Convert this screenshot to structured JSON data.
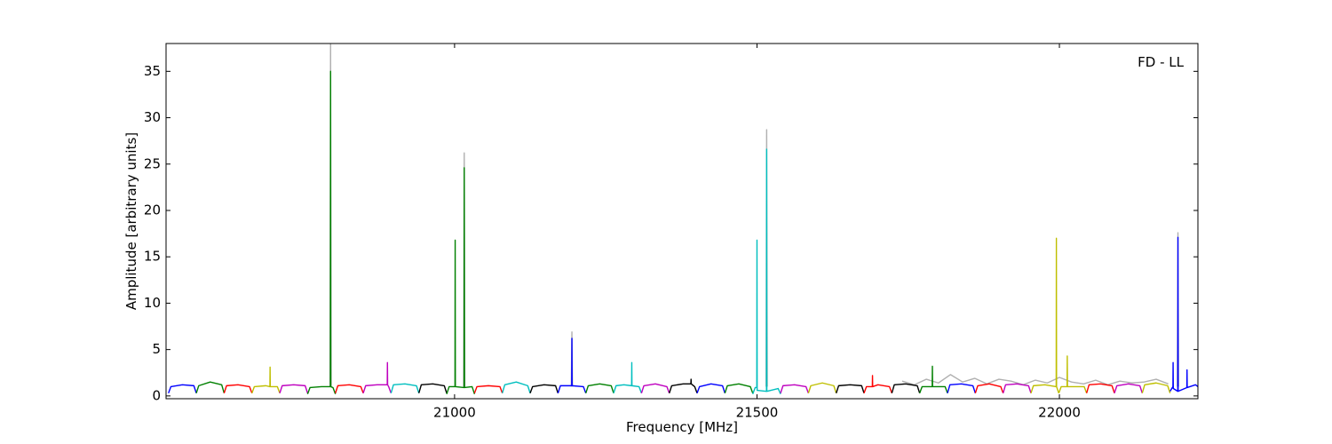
{
  "chart_data": {
    "type": "line",
    "xlabel": "Frequency [MHz]",
    "ylabel": "Amplitude [arbitrary units]",
    "annotation": "FD - LL",
    "xlim": [
      20523,
      22229
    ],
    "ylim": [
      -0.3,
      38
    ],
    "xticks": [
      21000,
      21500,
      22000
    ],
    "yticks": [
      0,
      5,
      10,
      15,
      20,
      25,
      30,
      35
    ],
    "series": [
      {
        "color": "#b0b0b0",
        "x": [
          20794,
          20795,
          20796,
          20797,
          21015,
          21016,
          21017,
          21018,
          21193,
          21194,
          21195,
          21196,
          21515,
          21516,
          21517,
          21518,
          21740,
          21760,
          21780,
          21800,
          21820,
          21840,
          21860,
          21880,
          21900,
          21920,
          21940,
          21960,
          21980,
          22000,
          22020,
          22040,
          22060,
          22080,
          22100,
          22120,
          22140,
          22160,
          22180,
          22181,
          22195,
          22196,
          22197
        ],
        "values": [
          1,
          38,
          1,
          null,
          1,
          26.2,
          1,
          null,
          1,
          6.9,
          1,
          null,
          1,
          28.7,
          1,
          null,
          1.6,
          1.2,
          1.8,
          1.4,
          2.3,
          1.5,
          1.9,
          1.3,
          1.8,
          1.6,
          1.2,
          1.7,
          1.4,
          2.0,
          1.5,
          1.3,
          1.7,
          1.2,
          1.6,
          1.4,
          1.5,
          1.8,
          1.3,
          null,
          1,
          17.6,
          1
        ]
      },
      {
        "color": "#0000ff",
        "x": [
          20527,
          20531,
          20550,
          20569,
          20573
        ],
        "values": [
          0.3,
          1.0,
          1.2,
          1.1,
          0.3
        ]
      },
      {
        "color": "#008000",
        "x": [
          20573,
          20577,
          20596,
          20615,
          20619
        ],
        "values": [
          0.3,
          1.1,
          1.5,
          1.2,
          0.3
        ]
      },
      {
        "color": "#ff0000",
        "x": [
          20619,
          20623,
          20642,
          20661,
          20665
        ],
        "values": [
          0.3,
          1.1,
          1.2,
          1.0,
          0.3
        ]
      },
      {
        "color": "#bfbf00",
        "x": [
          20665,
          20669,
          20688,
          20694.7,
          20695,
          20695.3,
          20707,
          20711
        ],
        "values": [
          0.3,
          1.0,
          1.1,
          1.0,
          3.1,
          1.0,
          1.0,
          0.3
        ]
      },
      {
        "color": "#bf00bf",
        "x": [
          20711,
          20715,
          20734,
          20753,
          20757
        ],
        "values": [
          0.3,
          1.1,
          1.2,
          1.1,
          0.3
        ]
      },
      {
        "color": "#008000",
        "x": [
          20757,
          20761,
          20780,
          20794.7,
          20795,
          20795.3,
          20799,
          20803
        ],
        "values": [
          0.2,
          0.9,
          1.0,
          1.0,
          35,
          1.0,
          0.9,
          0.2
        ]
      },
      {
        "color": "#ff0000",
        "x": [
          20803,
          20807,
          20826,
          20845,
          20849
        ],
        "values": [
          0.3,
          1.1,
          1.2,
          1.0,
          0.3
        ]
      },
      {
        "color": "#bf00bf",
        "x": [
          20849,
          20853,
          20872,
          20888.7,
          20889,
          20889.3,
          20891,
          20895
        ],
        "values": [
          0.3,
          1.1,
          1.2,
          1.2,
          3.6,
          1.2,
          1.0,
          0.3
        ]
      },
      {
        "color": "#00bfbf",
        "x": [
          20895,
          20899,
          20918,
          20937,
          20941
        ],
        "values": [
          0.3,
          1.2,
          1.3,
          1.1,
          0.3
        ]
      },
      {
        "color": "#000000",
        "x": [
          20941,
          20945,
          20964,
          20983,
          20987
        ],
        "values": [
          0.3,
          1.2,
          1.3,
          1.1,
          0.3
        ]
      },
      {
        "color": "#008000",
        "x": [
          20987,
          20991,
          21000.7,
          21001,
          21001.3,
          21015.7,
          21016,
          21016.3,
          21029,
          21033
        ],
        "values": [
          0.2,
          1.0,
          1.0,
          16.8,
          1.0,
          0.9,
          24.6,
          0.9,
          1.0,
          0.2
        ]
      },
      {
        "color": "#ff0000",
        "x": [
          21033,
          21037,
          21056,
          21075,
          21079
        ],
        "values": [
          0.3,
          1.0,
          1.1,
          1.0,
          0.3
        ]
      },
      {
        "color": "#00bfbf",
        "x": [
          21079,
          21083,
          21102,
          21121,
          21125
        ],
        "values": [
          0.3,
          1.2,
          1.5,
          1.1,
          0.3
        ]
      },
      {
        "color": "#000000",
        "x": [
          21125,
          21129,
          21148,
          21167,
          21171
        ],
        "values": [
          0.3,
          1.0,
          1.2,
          1.1,
          0.3
        ]
      },
      {
        "color": "#0000ff",
        "x": [
          21171,
          21175,
          21193.7,
          21194,
          21194.3,
          21213,
          21217
        ],
        "values": [
          0.3,
          1.1,
          1.1,
          6.2,
          1.1,
          1.0,
          0.3
        ]
      },
      {
        "color": "#008000",
        "x": [
          21217,
          21221,
          21240,
          21259,
          21263
        ],
        "values": [
          0.3,
          1.1,
          1.3,
          1.1,
          0.3
        ]
      },
      {
        "color": "#00bfbf",
        "x": [
          21263,
          21267,
          21280,
          21292.7,
          21293,
          21293.3,
          21305,
          21309
        ],
        "values": [
          0.3,
          1.1,
          1.2,
          1.1,
          3.6,
          1.1,
          1.0,
          0.3
        ]
      },
      {
        "color": "#bf00bf",
        "x": [
          21309,
          21313,
          21332,
          21351,
          21355
        ],
        "values": [
          0.3,
          1.1,
          1.3,
          1.0,
          0.3
        ]
      },
      {
        "color": "#000000",
        "x": [
          21355,
          21359,
          21378,
          21390.7,
          21391,
          21391.3,
          21397,
          21401
        ],
        "values": [
          0.3,
          1.1,
          1.3,
          1.3,
          1.8,
          1.3,
          1.0,
          0.3
        ]
      },
      {
        "color": "#0000ff",
        "x": [
          21401,
          21405,
          21424,
          21443,
          21447
        ],
        "values": [
          0.3,
          1.0,
          1.3,
          1.1,
          0.3
        ]
      },
      {
        "color": "#008000",
        "x": [
          21447,
          21451,
          21470,
          21489,
          21493
        ],
        "values": [
          0.3,
          1.1,
          1.3,
          1.0,
          0.3
        ]
      },
      {
        "color": "#00bfbf",
        "x": [
          21493,
          21497,
          21499.7,
          21500,
          21500.3,
          21515.7,
          21516,
          21516.3,
          21535,
          21539
        ],
        "values": [
          0.2,
          0.9,
          0.9,
          16.8,
          0.6,
          0.5,
          26.6,
          0.5,
          0.8,
          0.2
        ]
      },
      {
        "color": "#bf00bf",
        "x": [
          21539,
          21543,
          21562,
          21581,
          21585
        ],
        "values": [
          0.3,
          1.1,
          1.2,
          1.0,
          0.3
        ]
      },
      {
        "color": "#bfbf00",
        "x": [
          21585,
          21589,
          21608,
          21627,
          21631
        ],
        "values": [
          0.3,
          1.1,
          1.4,
          1.1,
          0.3
        ]
      },
      {
        "color": "#000000",
        "x": [
          21631,
          21635,
          21654,
          21673,
          21677
        ],
        "values": [
          0.3,
          1.1,
          1.2,
          1.1,
          0.3
        ]
      },
      {
        "color": "#ff0000",
        "x": [
          21677,
          21681,
          21690.7,
          21691,
          21691.3,
          21700,
          21719,
          21723
        ],
        "values": [
          0.3,
          1.0,
          1.0,
          2.2,
          1.0,
          1.2,
          1.0,
          0.3
        ]
      },
      {
        "color": "#000000",
        "x": [
          21723,
          21727,
          21746,
          21765,
          21769
        ],
        "values": [
          0.3,
          1.2,
          1.3,
          1.1,
          0.3
        ]
      },
      {
        "color": "#008000",
        "x": [
          21769,
          21773,
          21789.7,
          21790,
          21790.3,
          21811,
          21815
        ],
        "values": [
          0.3,
          1.0,
          1.0,
          3.2,
          1.0,
          1.0,
          0.3
        ]
      },
      {
        "color": "#0000ff",
        "x": [
          21815,
          21819,
          21838,
          21857,
          21861
        ],
        "values": [
          0.3,
          1.2,
          1.3,
          1.1,
          0.3
        ]
      },
      {
        "color": "#ff0000",
        "x": [
          21861,
          21865,
          21884,
          21903,
          21907
        ],
        "values": [
          0.3,
          1.1,
          1.3,
          1.0,
          0.3
        ]
      },
      {
        "color": "#bf00bf",
        "x": [
          21907,
          21911,
          21930,
          21949,
          21953
        ],
        "values": [
          0.3,
          1.2,
          1.3,
          1.1,
          0.3
        ]
      },
      {
        "color": "#bfbf00",
        "x": [
          21953,
          21957,
          21976,
          21994.7,
          21995,
          21995.3,
          21999
        ],
        "values": [
          0.3,
          1.1,
          1.2,
          1.0,
          17,
          1.0,
          0.3
        ]
      },
      {
        "color": "#bfbf00",
        "x": [
          21999,
          22003,
          22012.7,
          22013,
          22013.3,
          22041,
          22045
        ],
        "values": [
          0.3,
          1.0,
          1.0,
          4.3,
          1.0,
          1.0,
          0.3
        ]
      },
      {
        "color": "#ff0000",
        "x": [
          22045,
          22049,
          22068,
          22087,
          22091
        ],
        "values": [
          0.3,
          1.2,
          1.3,
          1.1,
          0.3
        ]
      },
      {
        "color": "#bf00bf",
        "x": [
          22091,
          22095,
          22114,
          22133,
          22137
        ],
        "values": [
          0.3,
          1.1,
          1.3,
          1.1,
          0.3
        ]
      },
      {
        "color": "#bfbf00",
        "x": [
          22137,
          22141,
          22160,
          22179,
          22183
        ],
        "values": [
          0.3,
          1.2,
          1.4,
          1.1,
          0.3
        ]
      },
      {
        "color": "#0000ff",
        "x": [
          22183,
          22187.7,
          22188,
          22188.3,
          22195.7,
          22196,
          22196.3,
          22210.7,
          22211,
          22211.3,
          22225,
          22229
        ],
        "values": [
          0.5,
          1.0,
          3.6,
          0.8,
          0.5,
          17.1,
          0.5,
          0.9,
          2.8,
          0.9,
          1.2,
          1.0
        ]
      }
    ]
  }
}
